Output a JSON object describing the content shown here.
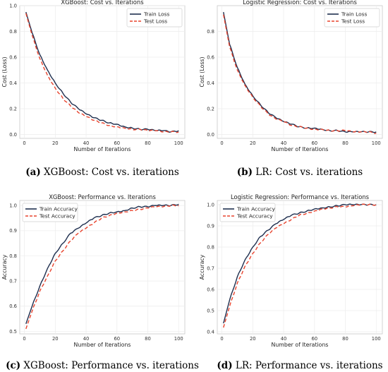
{
  "charts": {
    "accuracy": {
      "ylim": [
        0.4,
        1.0
      ]
    }
  },
  "chart_data": [
    {
      "panel": "a",
      "type": "line",
      "title": "XGBoost: Cost vs. Iterations",
      "xlabel": "Number of Iterations",
      "ylabel": "Cost (Loss)",
      "xlim": [
        -3,
        104
      ],
      "ylim": [
        -0.03,
        1.0
      ],
      "xticks": [
        0,
        20,
        40,
        60,
        80,
        100
      ],
      "yticks": [
        0.0,
        0.2,
        0.4,
        0.6,
        0.8,
        1.0
      ],
      "yticklabels": [
        "0.0",
        "0.2",
        "0.4",
        "0.6",
        "0.8",
        "1.0"
      ],
      "grid": true,
      "legend": "top-right",
      "caption_label": "(a)",
      "caption_text": " XGBoost: Cost vs. iterations",
      "series": [
        {
          "name": "Train Loss",
          "color": "#1f2f4f",
          "dash": "solid",
          "x": [
            1,
            5,
            10,
            15,
            20,
            25,
            30,
            35,
            40,
            45,
            50,
            55,
            60,
            65,
            70,
            75,
            80,
            85,
            90,
            95,
            100
          ],
          "y": [
            0.95,
            0.79,
            0.62,
            0.5,
            0.4,
            0.32,
            0.25,
            0.2,
            0.16,
            0.13,
            0.11,
            0.09,
            0.08,
            0.06,
            0.05,
            0.04,
            0.04,
            0.03,
            0.03,
            0.02,
            0.03
          ]
        },
        {
          "name": "Test Loss",
          "color": "#e8432d",
          "dash": "dashed",
          "x": [
            1,
            5,
            10,
            15,
            20,
            25,
            30,
            35,
            40,
            45,
            50,
            55,
            60,
            65,
            70,
            75,
            80,
            85,
            90,
            95,
            100
          ],
          "y": [
            0.94,
            0.77,
            0.59,
            0.46,
            0.36,
            0.28,
            0.22,
            0.17,
            0.14,
            0.11,
            0.09,
            0.07,
            0.06,
            0.05,
            0.04,
            0.04,
            0.03,
            0.03,
            0.02,
            0.02,
            0.02
          ]
        }
      ]
    },
    {
      "panel": "b",
      "type": "line",
      "title": "Logistic Regression: Cost vs. Iterations",
      "xlabel": "Number of Iterations",
      "ylabel": "Cost (Loss)",
      "xlim": [
        -3,
        104
      ],
      "ylim": [
        -0.03,
        1.0
      ],
      "xticks": [
        0,
        20,
        40,
        60,
        80,
        100
      ],
      "yticks": [
        0.0,
        0.2,
        0.4,
        0.6,
        0.8
      ],
      "yticklabels": [
        "0.0",
        "0.2",
        "0.4",
        "0.6",
        "0.8"
      ],
      "grid": true,
      "legend": "top-right",
      "caption_label": "(b)",
      "caption_text": " LR: Cost vs. iterations",
      "series": [
        {
          "name": "Train Loss",
          "color": "#1f2f4f",
          "dash": "solid",
          "x": [
            1,
            5,
            10,
            15,
            20,
            25,
            30,
            35,
            40,
            45,
            50,
            55,
            60,
            65,
            70,
            75,
            80,
            85,
            90,
            95,
            100
          ],
          "y": [
            0.95,
            0.7,
            0.52,
            0.39,
            0.3,
            0.23,
            0.17,
            0.13,
            0.1,
            0.08,
            0.06,
            0.05,
            0.05,
            0.04,
            0.03,
            0.03,
            0.02,
            0.02,
            0.02,
            0.02,
            0.02
          ]
        },
        {
          "name": "Test Loss",
          "color": "#e8432d",
          "dash": "dashed",
          "x": [
            1,
            5,
            10,
            15,
            20,
            25,
            30,
            35,
            40,
            45,
            50,
            55,
            60,
            65,
            70,
            75,
            80,
            85,
            90,
            95,
            100
          ],
          "y": [
            0.93,
            0.68,
            0.5,
            0.38,
            0.29,
            0.22,
            0.16,
            0.12,
            0.1,
            0.07,
            0.06,
            0.05,
            0.04,
            0.04,
            0.03,
            0.03,
            0.03,
            0.02,
            0.02,
            0.02,
            0.01
          ]
        }
      ]
    },
    {
      "panel": "c",
      "type": "line",
      "title": "XGBoost: Performance vs. Iterations",
      "xlabel": "Number of Iterations",
      "ylabel": "Accuracy",
      "xlim": [
        -3,
        104
      ],
      "ylim": [
        0.49,
        1.02
      ],
      "xticks": [
        0,
        20,
        40,
        60,
        80,
        100
      ],
      "yticks": [
        0.5,
        0.6,
        0.7,
        0.8,
        0.9,
        1.0
      ],
      "yticklabels": [
        "0.5",
        "0.6",
        "0.7",
        "0.8",
        "0.9",
        "1.0"
      ],
      "grid": true,
      "legend": "top-left",
      "caption_label": "(c)",
      "caption_text": " XGBoost: Performance vs. iterations",
      "series": [
        {
          "name": "Train Accuracy",
          "color": "#1f2f4f",
          "dash": "solid",
          "x": [
            1,
            5,
            10,
            15,
            20,
            25,
            30,
            35,
            40,
            45,
            50,
            55,
            60,
            65,
            70,
            75,
            80,
            85,
            90,
            95,
            100
          ],
          "y": [
            0.53,
            0.6,
            0.68,
            0.75,
            0.81,
            0.85,
            0.89,
            0.91,
            0.93,
            0.95,
            0.96,
            0.97,
            0.975,
            0.98,
            0.99,
            0.995,
            0.995,
            1.0,
            1.0,
            1.0,
            1.005
          ]
        },
        {
          "name": "Test Accuracy",
          "color": "#e8432d",
          "dash": "dashed",
          "x": [
            1,
            5,
            10,
            15,
            20,
            25,
            30,
            35,
            40,
            45,
            50,
            55,
            60,
            65,
            70,
            75,
            80,
            85,
            90,
            95,
            100
          ],
          "y": [
            0.51,
            0.58,
            0.66,
            0.72,
            0.78,
            0.82,
            0.86,
            0.89,
            0.91,
            0.93,
            0.95,
            0.96,
            0.97,
            0.975,
            0.98,
            0.985,
            0.99,
            0.995,
            0.995,
            1.0,
            1.0
          ]
        }
      ]
    },
    {
      "panel": "d",
      "type": "line",
      "title": "Logistic Regression: Performance vs. Iterations",
      "xlabel": "Number of Iterations",
      "ylabel": "Accuracy",
      "xlim": [
        -3,
        104
      ],
      "ylim": [
        0.39,
        1.02
      ],
      "xticks": [
        0,
        20,
        40,
        60,
        80,
        100
      ],
      "yticks": [
        0.4,
        0.5,
        0.6,
        0.7,
        0.8,
        0.9,
        1.0
      ],
      "yticklabels": [
        "0.4",
        "0.5",
        "0.6",
        "0.7",
        "0.8",
        "0.9",
        "1.0"
      ],
      "grid": true,
      "legend": "top-left",
      "caption_label": "(d)",
      "caption_text": " LR: Performance vs. iterations",
      "series": [
        {
          "name": "Train Accuracy",
          "color": "#1f2f4f",
          "dash": "solid",
          "x": [
            1,
            5,
            10,
            15,
            20,
            25,
            30,
            35,
            40,
            45,
            50,
            55,
            60,
            65,
            70,
            75,
            80,
            85,
            90,
            95,
            100
          ],
          "y": [
            0.44,
            0.55,
            0.66,
            0.74,
            0.8,
            0.85,
            0.88,
            0.91,
            0.93,
            0.95,
            0.96,
            0.97,
            0.98,
            0.985,
            0.99,
            0.995,
            1.0,
            1.0,
            1.0,
            1.0,
            1.0
          ]
        },
        {
          "name": "Test Accuracy",
          "color": "#e8432d",
          "dash": "dashed",
          "x": [
            1,
            5,
            10,
            15,
            20,
            25,
            30,
            35,
            40,
            45,
            50,
            55,
            60,
            65,
            70,
            75,
            80,
            85,
            90,
            95,
            100
          ],
          "y": [
            0.42,
            0.52,
            0.63,
            0.71,
            0.77,
            0.82,
            0.86,
            0.89,
            0.91,
            0.93,
            0.95,
            0.96,
            0.97,
            0.98,
            0.985,
            0.99,
            0.99,
            0.995,
            1.0,
            1.0,
            1.0
          ]
        }
      ]
    }
  ]
}
